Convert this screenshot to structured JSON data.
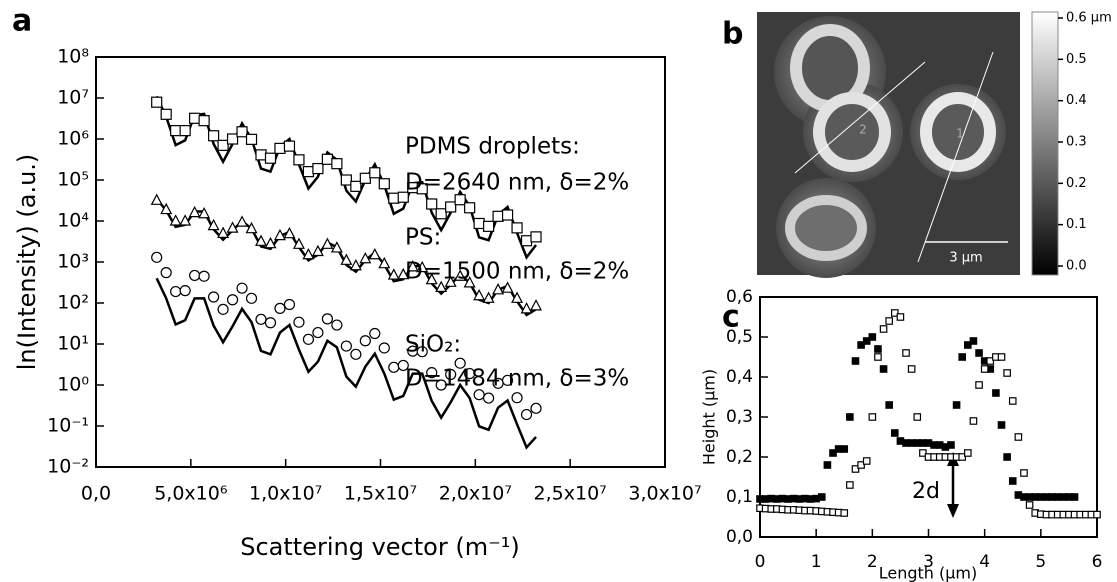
{
  "chart_data": [
    {
      "type": "scatter",
      "panel_label": "a",
      "yscale": "log",
      "x_label": "Scattering vector (m⁻¹)",
      "y_label": "ln(Intensity) (a.u.)",
      "xlim": [
        0,
        30000000
      ],
      "ylim": [
        0.01,
        100000000
      ],
      "xticks": [
        {
          "value": 0,
          "label": "0,0"
        },
        {
          "value": 5000000,
          "label": "5,0x10⁶"
        },
        {
          "value": 10000000,
          "label": "1,0x10⁷"
        },
        {
          "value": 15000000,
          "label": "1,5x10⁷"
        },
        {
          "value": 20000000,
          "label": "2,0x10⁷"
        },
        {
          "value": 25000000,
          "label": "2,5x10⁷"
        },
        {
          "value": 30000000,
          "label": "3,0x10⁷"
        }
      ],
      "yticks": [
        {
          "value": 0.01,
          "label": "10⁻²"
        },
        {
          "value": 0.1,
          "label": "10⁻¹"
        },
        {
          "value": 1,
          "label": "10⁰"
        },
        {
          "value": 10,
          "label": "10¹"
        },
        {
          "value": 100,
          "label": "10²"
        },
        {
          "value": 1000,
          "label": "10³"
        },
        {
          "value": 10000,
          "label": "10⁴"
        },
        {
          "value": 100000,
          "label": "10⁵"
        },
        {
          "value": 1000000,
          "label": "10⁶"
        },
        {
          "value": 10000000,
          "label": "10⁷"
        },
        {
          "value": 100000000,
          "label": "10⁸"
        }
      ],
      "annotations": [
        "PDMS droplets:",
        "D=2640 nm, δ=2%",
        "PS:",
        "D=1500 nm, δ=2%",
        "SiO₂:",
        "D=1484 nm, δ=3%"
      ],
      "x": [
        3200000.0,
        3700000.0,
        4200000.0,
        4700000.0,
        5200000.0,
        5700000.0,
        6200000.0,
        6700000.0,
        7200000.0,
        7700000.0,
        8200000.0,
        8700000.0,
        9200000.0,
        9700000.0,
        10200000.0,
        10700000.0,
        11200000.0,
        11700000.0,
        12200000.0,
        12700000.0,
        13200000.0,
        13700000.0,
        14200000.0,
        14700000.0,
        15200000.0,
        15700000.0,
        16200000.0,
        16700000.0,
        17200000.0,
        17700000.0,
        18200000.0,
        18700000.0,
        19200000.0,
        19700000.0,
        20200000.0,
        20700000.0,
        21200000.0,
        21700000.0,
        22200000.0,
        22700000.0,
        23200000.0
      ],
      "series": [
        {
          "style": "line",
          "color": "#000000",
          "values": [
            11000000.0,
            3500000.0,
            710000.0,
            930000.0,
            3800000.0,
            4100000.0,
            760000.0,
            280000.0,
            760000.0,
            2400000.0,
            1000000.0,
            190000.0,
            160000.0,
            640000.0,
            1000000.0,
            240000.0,
            62000.0,
            120000.0,
            470000.0,
            310000.0,
            55000.0,
            30000.0,
            100000.0,
            240000.0,
            75000.0,
            15000.0,
            20000.0,
            83000.0,
            88000.0,
            16000.0,
            6000.0,
            16000.0,
            51000.0,
            23000.0,
            4000.0,
            3400.0,
            14000.0,
            22000.0,
            5100.0,
            1300.0,
            2600.0
          ]
        },
        {
          "style": "markers",
          "marker": "square",
          "filled": false,
          "color": "#000000",
          "values": [
            7900000.0,
            4000000.0,
            1600000.0,
            1600000.0,
            3200000.0,
            2800000.0,
            1200000.0,
            700000.0,
            1000000.0,
            1500000.0,
            980000.0,
            410000.0,
            340000.0,
            590000.0,
            670000.0,
            310000.0,
            160000.0,
            190000.0,
            320000.0,
            250000.0,
            100000.0,
            70000.0,
            110000.0,
            150000.0,
            81000.0,
            36000.0,
            38000.0,
            65000.0,
            61000.0,
            26000.0,
            15000.0,
            22000.0,
            33000.0,
            21000.0,
            8700.0,
            7400.0,
            13000.0,
            14000.0,
            6800.0,
            3300.0,
            4100.0
          ]
        },
        {
          "style": "line",
          "color": "#000000",
          "values": [
            35000.0,
            18000.0,
            7200.0,
            8100.0,
            17000.0,
            17000.0,
            6300.0,
            3500.0,
            5900.0,
            10000.0,
            6500.0,
            2400.0,
            2100.0,
            4300.0,
            5400.0,
            2300.0,
            1100.0,
            1500.0,
            3000.0,
            2300.0,
            850,
            580,
            1100.0,
            1700.0,
            860,
            340,
            380,
            800,
            790,
            300,
            170,
            280,
            500,
            310,
            120,
            100,
            210,
            260,
            110,
            51,
            70
          ]
        },
        {
          "style": "markers",
          "marker": "triangle",
          "filled": false,
          "color": "#000000",
          "values": [
            32000.0,
            19000.0,
            10000.0,
            10000.0,
            16000.0,
            15000.0,
            7700.0,
            5000.0,
            6700.0,
            9400.0,
            6500.0,
            3200.0,
            2800.0,
            4400.0,
            4900.0,
            2700.0,
            1500.0,
            1800.0,
            2700.0,
            2200.0,
            1100.0,
            810.0,
            1200.0,
            1500.0,
            910.0,
            480.0,
            490.0,
            760.0,
            730.0,
            370.0,
            240.0,
            320.0,
            450.0,
            310.0,
            150.0,
            130.0,
            210.0,
            230.0,
            130.0,
            72,
            85
          ]
        },
        {
          "style": "line",
          "color": "#000000",
          "values": [
            400,
            130,
            30,
            38,
            130,
            130,
            28,
            11,
            27,
            72,
            34,
            6.8,
            5.6,
            19,
            29,
            7.3,
            2.1,
            3.7,
            12,
            8.3,
            1.6,
            0.91,
            2.8,
            5.8,
            1.9,
            0.44,
            0.54,
            1.9,
            1.9,
            0.41,
            0.16,
            0.38,
            1.0,
            0.48,
            0.098,
            0.081,
            0.28,
            0.42,
            0.11,
            0.03,
            0.054
          ]
        },
        {
          "style": "markers",
          "marker": "circle",
          "filled": false,
          "color": "#000000",
          "values": [
            1300,
            550,
            190,
            200,
            470,
            450,
            140,
            70,
            120,
            230,
            130,
            40,
            33,
            74,
            92,
            34,
            13,
            19,
            41,
            29,
            8.9,
            5.6,
            12,
            18,
            8.0,
            2.7,
            3.0,
            6.7,
            6.5,
            2.0,
            1.0,
            1.8,
            3.4,
            1.9,
            0.58,
            0.48,
            1.1,
            1.3,
            0.49,
            0.19,
            0.27
          ]
        }
      ]
    },
    {
      "type": "image",
      "panel_label": "b",
      "scale_bar": "3 µm",
      "profile_labels": [
        "1",
        "2"
      ],
      "colorbar": {
        "lim": [
          0,
          0.6
        ],
        "ticks": [
          {
            "value": 0.6,
            "label": "0.6 µm"
          },
          0.5,
          0.4,
          0.3,
          0.2,
          0.1,
          {
            "value": 0,
            "label": "0.0"
          }
        ]
      }
    },
    {
      "type": "scatter",
      "panel_label": "c",
      "yscale": "linear",
      "x_label": "Length (µm)",
      "y_label": "Height (µm)",
      "xlim": [
        0,
        6
      ],
      "ylim": [
        0,
        0.6
      ],
      "xticks": [
        0,
        1,
        2,
        3,
        4,
        5,
        6
      ],
      "yticks": [
        {
          "value": 0,
          "label": "0,0"
        },
        {
          "value": 0.1,
          "label": "0,1"
        },
        {
          "value": 0.2,
          "label": "0,2"
        },
        {
          "value": 0.3,
          "label": "0,3"
        },
        {
          "value": 0.4,
          "label": "0,4"
        },
        {
          "value": 0.5,
          "label": "0,5"
        },
        {
          "value": 0.6,
          "label": "0,6"
        }
      ],
      "annotations": [
        "2d"
      ],
      "series": [
        {
          "style": "markers",
          "marker": "square",
          "filled": true,
          "color": "#000000",
          "x": [
            0,
            0.1,
            0.2,
            0.3,
            0.4,
            0.5,
            0.6,
            0.7,
            0.8,
            0.9,
            1.0,
            1.1,
            1.2,
            1.3,
            1.4,
            1.5,
            1.6,
            1.7,
            1.8,
            1.9,
            2.0,
            2.1,
            2.2,
            2.3,
            2.4,
            2.5,
            2.6,
            2.7,
            2.8,
            2.9,
            3.0,
            3.1,
            3.2,
            3.3,
            3.4,
            3.5,
            3.6,
            3.7,
            3.8,
            3.9,
            4.0,
            4.1,
            4.2,
            4.3,
            4.4,
            4.5,
            4.6,
            4.7,
            4.8,
            4.9,
            5.0,
            5.1,
            5.2,
            5.3,
            5.4,
            5.5,
            5.6
          ],
          "values": [
            0.095,
            0.095,
            0.096,
            0.095,
            0.096,
            0.095,
            0.096,
            0.095,
            0.096,
            0.095,
            0.096,
            0.1,
            0.18,
            0.21,
            0.22,
            0.22,
            0.3,
            0.44,
            0.48,
            0.49,
            0.5,
            0.47,
            0.42,
            0.33,
            0.26,
            0.24,
            0.235,
            0.235,
            0.235,
            0.235,
            0.235,
            0.23,
            0.23,
            0.225,
            0.23,
            0.33,
            0.45,
            0.48,
            0.49,
            0.46,
            0.44,
            0.42,
            0.36,
            0.28,
            0.2,
            0.14,
            0.105,
            0.1,
            0.1,
            0.1,
            0.1,
            0.1,
            0.1,
            0.1,
            0.1,
            0.1,
            0.1
          ]
        },
        {
          "style": "markers",
          "marker": "square",
          "filled": false,
          "color": "#000000",
          "x": [
            0,
            0.1,
            0.2,
            0.3,
            0.4,
            0.5,
            0.6,
            0.7,
            0.8,
            0.9,
            1.0,
            1.1,
            1.2,
            1.3,
            1.4,
            1.5,
            1.6,
            1.7,
            1.8,
            1.9,
            2.0,
            2.1,
            2.2,
            2.3,
            2.4,
            2.5,
            2.6,
            2.7,
            2.8,
            2.9,
            3.0,
            3.1,
            3.2,
            3.3,
            3.4,
            3.5,
            3.6,
            3.7,
            3.8,
            3.9,
            4.0,
            4.1,
            4.2,
            4.3,
            4.4,
            4.5,
            4.6,
            4.7,
            4.8,
            4.9,
            5.0,
            5.1,
            5.2,
            5.3,
            5.4,
            5.5,
            5.6,
            5.7,
            5.8,
            5.9,
            6.0
          ],
          "values": [
            0.072,
            0.071,
            0.07,
            0.07,
            0.069,
            0.068,
            0.068,
            0.067,
            0.066,
            0.066,
            0.065,
            0.064,
            0.063,
            0.062,
            0.061,
            0.06,
            0.13,
            0.17,
            0.18,
            0.19,
            0.3,
            0.45,
            0.52,
            0.54,
            0.56,
            0.55,
            0.46,
            0.42,
            0.3,
            0.21,
            0.2,
            0.2,
            0.2,
            0.2,
            0.2,
            0.2,
            0.2,
            0.21,
            0.29,
            0.38,
            0.42,
            0.44,
            0.45,
            0.45,
            0.41,
            0.34,
            0.25,
            0.16,
            0.08,
            0.06,
            0.057,
            0.056,
            0.056,
            0.056,
            0.056,
            0.056,
            0.056,
            0.056,
            0.056,
            0.056,
            0.056
          ]
        }
      ]
    }
  ]
}
